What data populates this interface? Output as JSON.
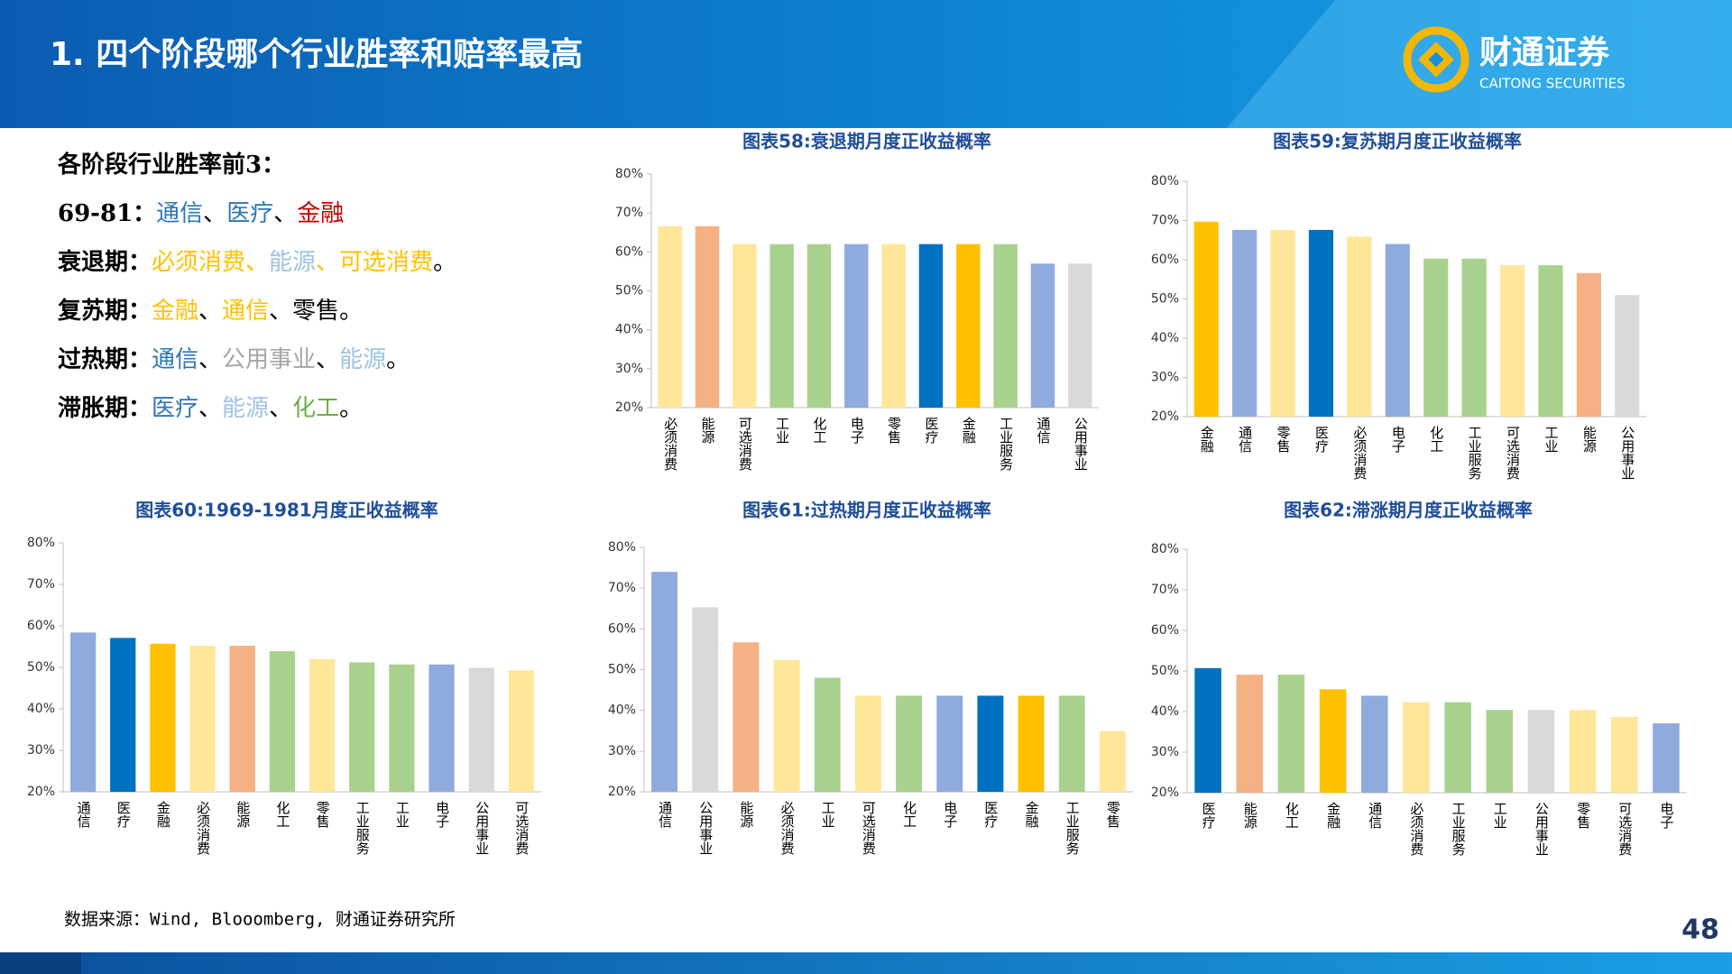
{
  "header": {
    "title": "1. 四个阶段哪个行业胜率和赔率最高"
  },
  "logo": {
    "name": "财通证券",
    "english": "CAITONG SECURITIES"
  },
  "summary": {
    "heading": "各阶段行业胜率前3：",
    "lines": [
      {
        "label": "69-81：",
        "segments": [
          {
            "text": "通信",
            "color": "#2e75b6"
          },
          {
            "text": "、",
            "color": "#000000"
          },
          {
            "text": "医疗",
            "color": "#2e75b6"
          },
          {
            "text": "、",
            "color": "#000000"
          },
          {
            "text": "金融",
            "color": "#c00000"
          }
        ]
      },
      {
        "label": "衰退期：",
        "segments": [
          {
            "text": "必须消费、",
            "color": "#ffc000"
          },
          {
            "text": "能源",
            "color": "#9dc3e6"
          },
          {
            "text": "、可选消费",
            "color": "#ffc000"
          },
          {
            "text": "。",
            "color": "#000000"
          }
        ]
      },
      {
        "label": "复苏期：",
        "segments": [
          {
            "text": "金融",
            "color": "#ffc000"
          },
          {
            "text": "、",
            "color": "#000000"
          },
          {
            "text": "通信",
            "color": "#ffc000"
          },
          {
            "text": "、零售。",
            "color": "#000000"
          }
        ]
      },
      {
        "label": "过热期：",
        "segments": [
          {
            "text": "通信",
            "color": "#2e75b6"
          },
          {
            "text": "、",
            "color": "#000000"
          },
          {
            "text": "公用事业",
            "color": "#a6a6a6"
          },
          {
            "text": "、",
            "color": "#000000"
          },
          {
            "text": "能源",
            "color": "#9dc3e6"
          },
          {
            "text": "。",
            "color": "#000000"
          }
        ]
      },
      {
        "label": "滞胀期：",
        "segments": [
          {
            "text": "医疗",
            "color": "#2e75b6"
          },
          {
            "text": "、",
            "color": "#000000"
          },
          {
            "text": "能源",
            "color": "#9dc3e6"
          },
          {
            "text": "、",
            "color": "#000000"
          },
          {
            "text": "化工",
            "color": "#70ad47"
          },
          {
            "text": "。",
            "color": "#000000"
          }
        ]
      }
    ]
  },
  "chart_data": [
    {
      "type": "bar",
      "title": "图表58:衰退期月度正收益概率",
      "categories": [
        "必须消费",
        "能源",
        "可选消费",
        "工业",
        "化工",
        "电子",
        "零售",
        "医疗",
        "金融",
        "工业服务",
        "通信",
        "公用事业"
      ],
      "values": [
        66.6,
        66.6,
        62,
        62,
        62,
        62,
        62,
        62,
        62,
        62,
        57,
        57
      ],
      "colors": [
        "#ffe699",
        "#f4b183",
        "#ffe699",
        "#a9d18e",
        "#a9d18e",
        "#8faadc",
        "#ffe699",
        "#0070c0",
        "#ffc000",
        "#a9d18e",
        "#8faadc",
        "#d9d9d9"
      ],
      "ylim": [
        20,
        80
      ],
      "yticks": [
        {
          "value": 20,
          "label": "20%"
        },
        {
          "value": 30,
          "label": "30%"
        },
        {
          "value": 40,
          "label": "40%"
        },
        {
          "value": 50,
          "label": "50%"
        },
        {
          "value": 60,
          "label": "60%"
        },
        {
          "value": 70,
          "label": "70%"
        },
        {
          "value": 80,
          "label": "80%"
        }
      ]
    },
    {
      "type": "bar",
      "title": "图表59:复苏期月度正收益概率",
      "categories": [
        "金融",
        "通信",
        "零售",
        "医疗",
        "必须消费",
        "电子",
        "化工",
        "工业服务",
        "可选消费",
        "工业",
        "能源",
        "公用事业"
      ],
      "values": [
        69.7,
        67.6,
        67.6,
        67.6,
        65.9,
        64,
        60.3,
        60.3,
        58.6,
        58.6,
        56.6,
        51
      ],
      "colors": [
        "#ffc000",
        "#8faadc",
        "#ffe699",
        "#0070c0",
        "#ffe699",
        "#8faadc",
        "#a9d18e",
        "#a9d18e",
        "#ffe699",
        "#a9d18e",
        "#f4b183",
        "#d9d9d9"
      ],
      "ylim": [
        20,
        80
      ],
      "yticks": [
        {
          "value": 20,
          "label": "20%"
        },
        {
          "value": 30,
          "label": "30%"
        },
        {
          "value": 40,
          "label": "40%"
        },
        {
          "value": 50,
          "label": "50%"
        },
        {
          "value": 60,
          "label": "60%"
        },
        {
          "value": 70,
          "label": "70%"
        },
        {
          "value": 80,
          "label": "80%"
        }
      ]
    },
    {
      "type": "bar",
      "title": "图表60:1969-1981月度正收益概率",
      "categories": [
        "通信",
        "医疗",
        "金融",
        "必须消费",
        "能源",
        "化工",
        "零售",
        "工业服务",
        "工业",
        "电子",
        "公用事业",
        "可选消费"
      ],
      "values": [
        58.4,
        57.1,
        55.7,
        55.2,
        55.2,
        53.9,
        52,
        51.2,
        50.7,
        50.7,
        49.9,
        49.3
      ],
      "colors": [
        "#8faadc",
        "#0070c0",
        "#ffc000",
        "#ffe699",
        "#f4b183",
        "#a9d18e",
        "#ffe699",
        "#a9d18e",
        "#a9d18e",
        "#8faadc",
        "#d9d9d9",
        "#ffe699"
      ],
      "ylim": [
        20,
        80
      ],
      "yticks": [
        {
          "value": 20,
          "label": "20%"
        },
        {
          "value": 30,
          "label": "30%"
        },
        {
          "value": 40,
          "label": "40%"
        },
        {
          "value": 50,
          "label": "50%"
        },
        {
          "value": 60,
          "label": "60%"
        },
        {
          "value": 70,
          "label": "70%"
        },
        {
          "value": 80,
          "label": "80%"
        }
      ]
    },
    {
      "type": "bar",
      "title": "图表61:过热期月度正收益概率",
      "categories": [
        "通信",
        "公用事业",
        "能源",
        "必须消费",
        "工业",
        "可选消费",
        "化工",
        "电子",
        "医疗",
        "金融",
        "工业服务",
        "零售"
      ],
      "values": [
        74,
        65.3,
        56.7,
        52.3,
        48,
        43.6,
        43.6,
        43.6,
        43.6,
        43.6,
        43.6,
        34.9
      ],
      "colors": [
        "#8faadc",
        "#d9d9d9",
        "#f4b183",
        "#ffe699",
        "#a9d18e",
        "#ffe699",
        "#a9d18e",
        "#8faadc",
        "#0070c0",
        "#ffc000",
        "#a9d18e",
        "#ffe699"
      ],
      "ylim": [
        20,
        80
      ],
      "yticks": [
        {
          "value": 20,
          "label": "20%"
        },
        {
          "value": 30,
          "label": "30%"
        },
        {
          "value": 40,
          "label": "40%"
        },
        {
          "value": 50,
          "label": "50%"
        },
        {
          "value": 60,
          "label": "60%"
        },
        {
          "value": 70,
          "label": "70%"
        },
        {
          "value": 80,
          "label": "80%"
        }
      ]
    },
    {
      "type": "bar",
      "title": "图表62:滞涨期月度正收益概率",
      "categories": [
        "医疗",
        "能源",
        "化工",
        "金融",
        "通信",
        "必须消费",
        "工业服务",
        "工业",
        "公用事业",
        "零售",
        "可选消费",
        "电子"
      ],
      "values": [
        50.7,
        49.1,
        49.1,
        45.5,
        43.9,
        42.3,
        42.3,
        40.4,
        40.4,
        40.4,
        38.7,
        37.1
      ],
      "colors": [
        "#0070c0",
        "#f4b183",
        "#a9d18e",
        "#ffc000",
        "#8faadc",
        "#ffe699",
        "#a9d18e",
        "#a9d18e",
        "#d9d9d9",
        "#ffe699",
        "#ffe699",
        "#8faadc"
      ],
      "ylim": [
        20,
        80
      ],
      "yticks": [
        {
          "value": 20,
          "label": "20%"
        },
        {
          "value": 30,
          "label": "30%"
        },
        {
          "value": 40,
          "label": "40%"
        },
        {
          "value": 50,
          "label": "50%"
        },
        {
          "value": 60,
          "label": "60%"
        },
        {
          "value": 70,
          "label": "70%"
        },
        {
          "value": 80,
          "label": "80%"
        }
      ]
    }
  ],
  "footer": {
    "source": "数据来源：Wind, Blooomberg, 财通证券研究所",
    "page": "48"
  }
}
